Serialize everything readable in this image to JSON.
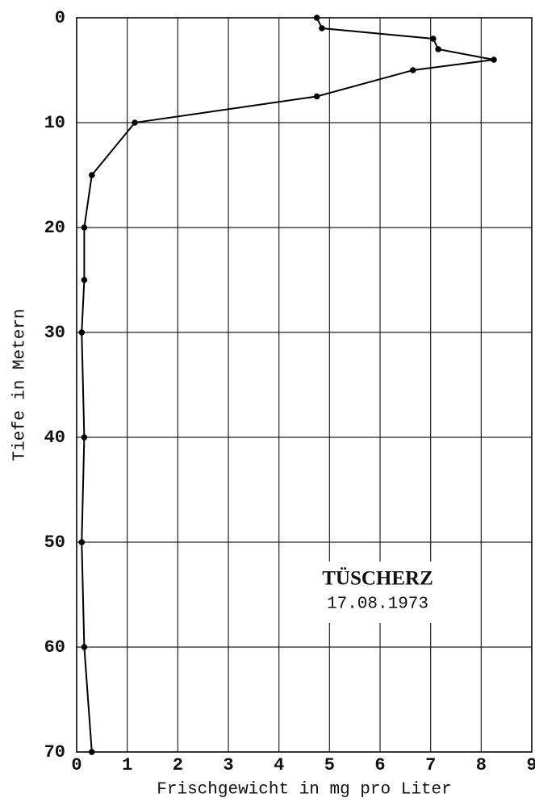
{
  "chart_data": {
    "type": "line",
    "xlabel": "Frischgewicht in mg pro Liter",
    "ylabel": "Tiefe in Metern",
    "annotation": {
      "title": "TÜSCHERZ",
      "date": "17.08.1973"
    },
    "xlim": [
      0,
      9
    ],
    "xticks": [
      0,
      1,
      2,
      3,
      4,
      5,
      6,
      7,
      8,
      9
    ],
    "ylim": [
      0,
      70
    ],
    "yticks": [
      0,
      10,
      20,
      30,
      40,
      50,
      60,
      70
    ],
    "y_inverted": true,
    "grid": true,
    "color": "#000000",
    "x": [
      4.75,
      4.85,
      7.05,
      7.15,
      8.25,
      6.65,
      4.75,
      1.15,
      0.3,
      0.15,
      0.15,
      0.1,
      0.15,
      0.1,
      0.15,
      0.3
    ],
    "y": [
      0,
      1,
      2,
      3,
      4,
      5,
      7.5,
      10,
      15,
      20,
      25,
      30,
      40,
      50,
      60,
      70
    ]
  }
}
